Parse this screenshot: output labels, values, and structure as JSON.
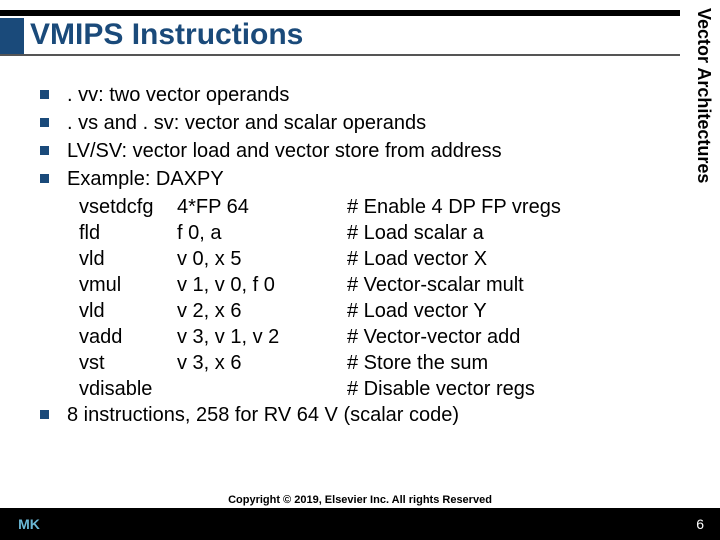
{
  "sidebar_label": "Vector Architectures",
  "title": "VMIPS Instructions",
  "bullets": [
    ". vv:  two vector operands",
    ". vs and . sv:  vector and scalar operands",
    "LV/SV:  vector load and vector store from address",
    "Example:  DAXPY"
  ],
  "code": [
    {
      "op": "vsetdcfg",
      "args": "4*FP 64",
      "comment": "# Enable 4 DP FP vregs"
    },
    {
      "op": "fld",
      "args": "f 0, a",
      "comment": "# Load scalar a"
    },
    {
      "op": "vld",
      "args": "v 0, x 5",
      "comment": "# Load vector X"
    },
    {
      "op": "vmul",
      "args": "v 1, v 0, f 0",
      "comment": "# Vector-scalar mult"
    },
    {
      "op": "vld",
      "args": "v 2, x 6",
      "comment": "# Load vector Y"
    },
    {
      "op": "vadd",
      "args": "v 3, v 1, v 2",
      "comment": "# Vector-vector add"
    },
    {
      "op": "vst",
      "args": "v 3, x 6",
      "comment": "# Store the sum"
    },
    {
      "op": "vdisable",
      "args": "",
      "comment": "# Disable vector regs"
    }
  ],
  "last_bullet": "8 instructions, 258 for RV 64 V (scalar code)",
  "copyright": "Copyright © 2019, Elsevier Inc. All rights Reserved",
  "page_number": "6",
  "logo_text": "MK",
  "colors": {
    "accent": "#1a4a7a",
    "logo": "#6bb8d6",
    "bg": "#ffffff",
    "text": "#000000"
  }
}
